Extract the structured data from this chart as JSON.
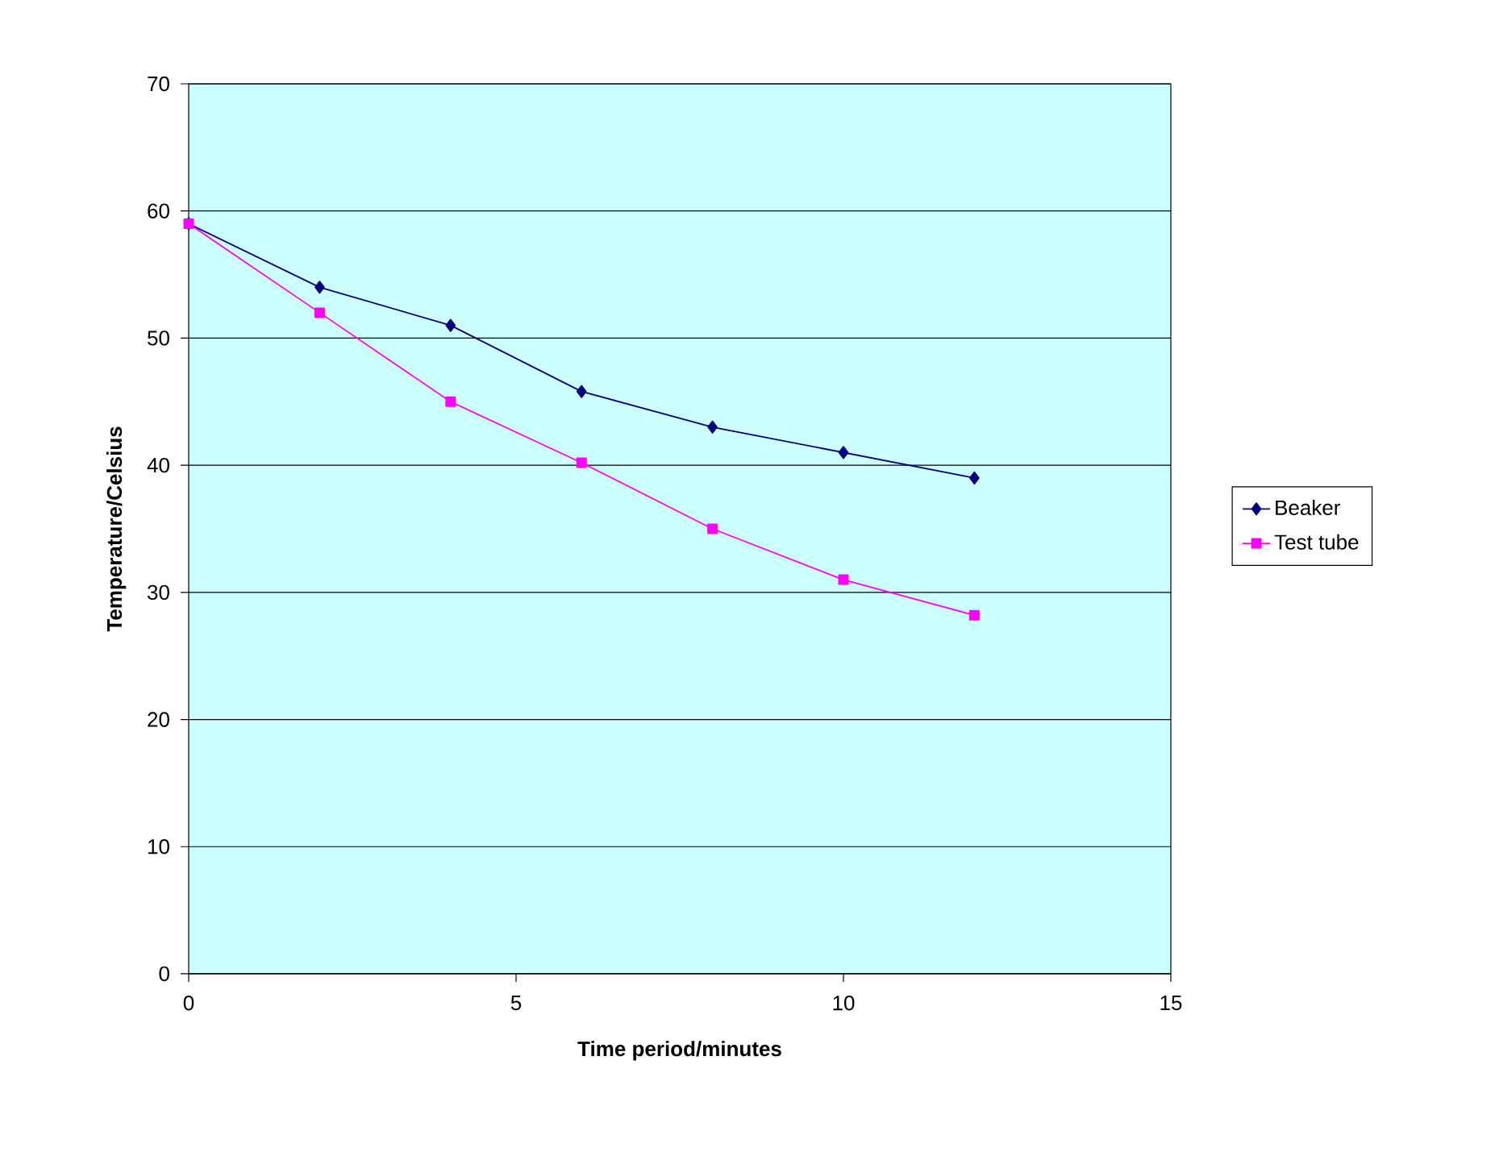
{
  "chart_data": {
    "type": "line",
    "xlabel": "Time period/minutes",
    "ylabel": "Temperature/Celsius",
    "x": [
      0,
      2,
      4,
      6,
      8,
      10,
      12
    ],
    "series": [
      {
        "name": "Beaker",
        "color": "#000080",
        "marker": "diamond",
        "values": [
          59,
          54,
          51,
          45.8,
          43,
          41,
          39
        ]
      },
      {
        "name": "Test tube",
        "color": "#ff00ff",
        "marker": "square",
        "values": [
          59,
          52,
          45,
          40.2,
          35,
          31,
          28.2
        ]
      }
    ],
    "xlim": [
      0,
      15
    ],
    "xticks": [
      0,
      5,
      10,
      15
    ],
    "ylim": [
      0,
      70
    ],
    "yticks": [
      0,
      10,
      20,
      30,
      40,
      50,
      60,
      70
    ],
    "grid": "y",
    "legend": "right",
    "line_style": "solid"
  }
}
